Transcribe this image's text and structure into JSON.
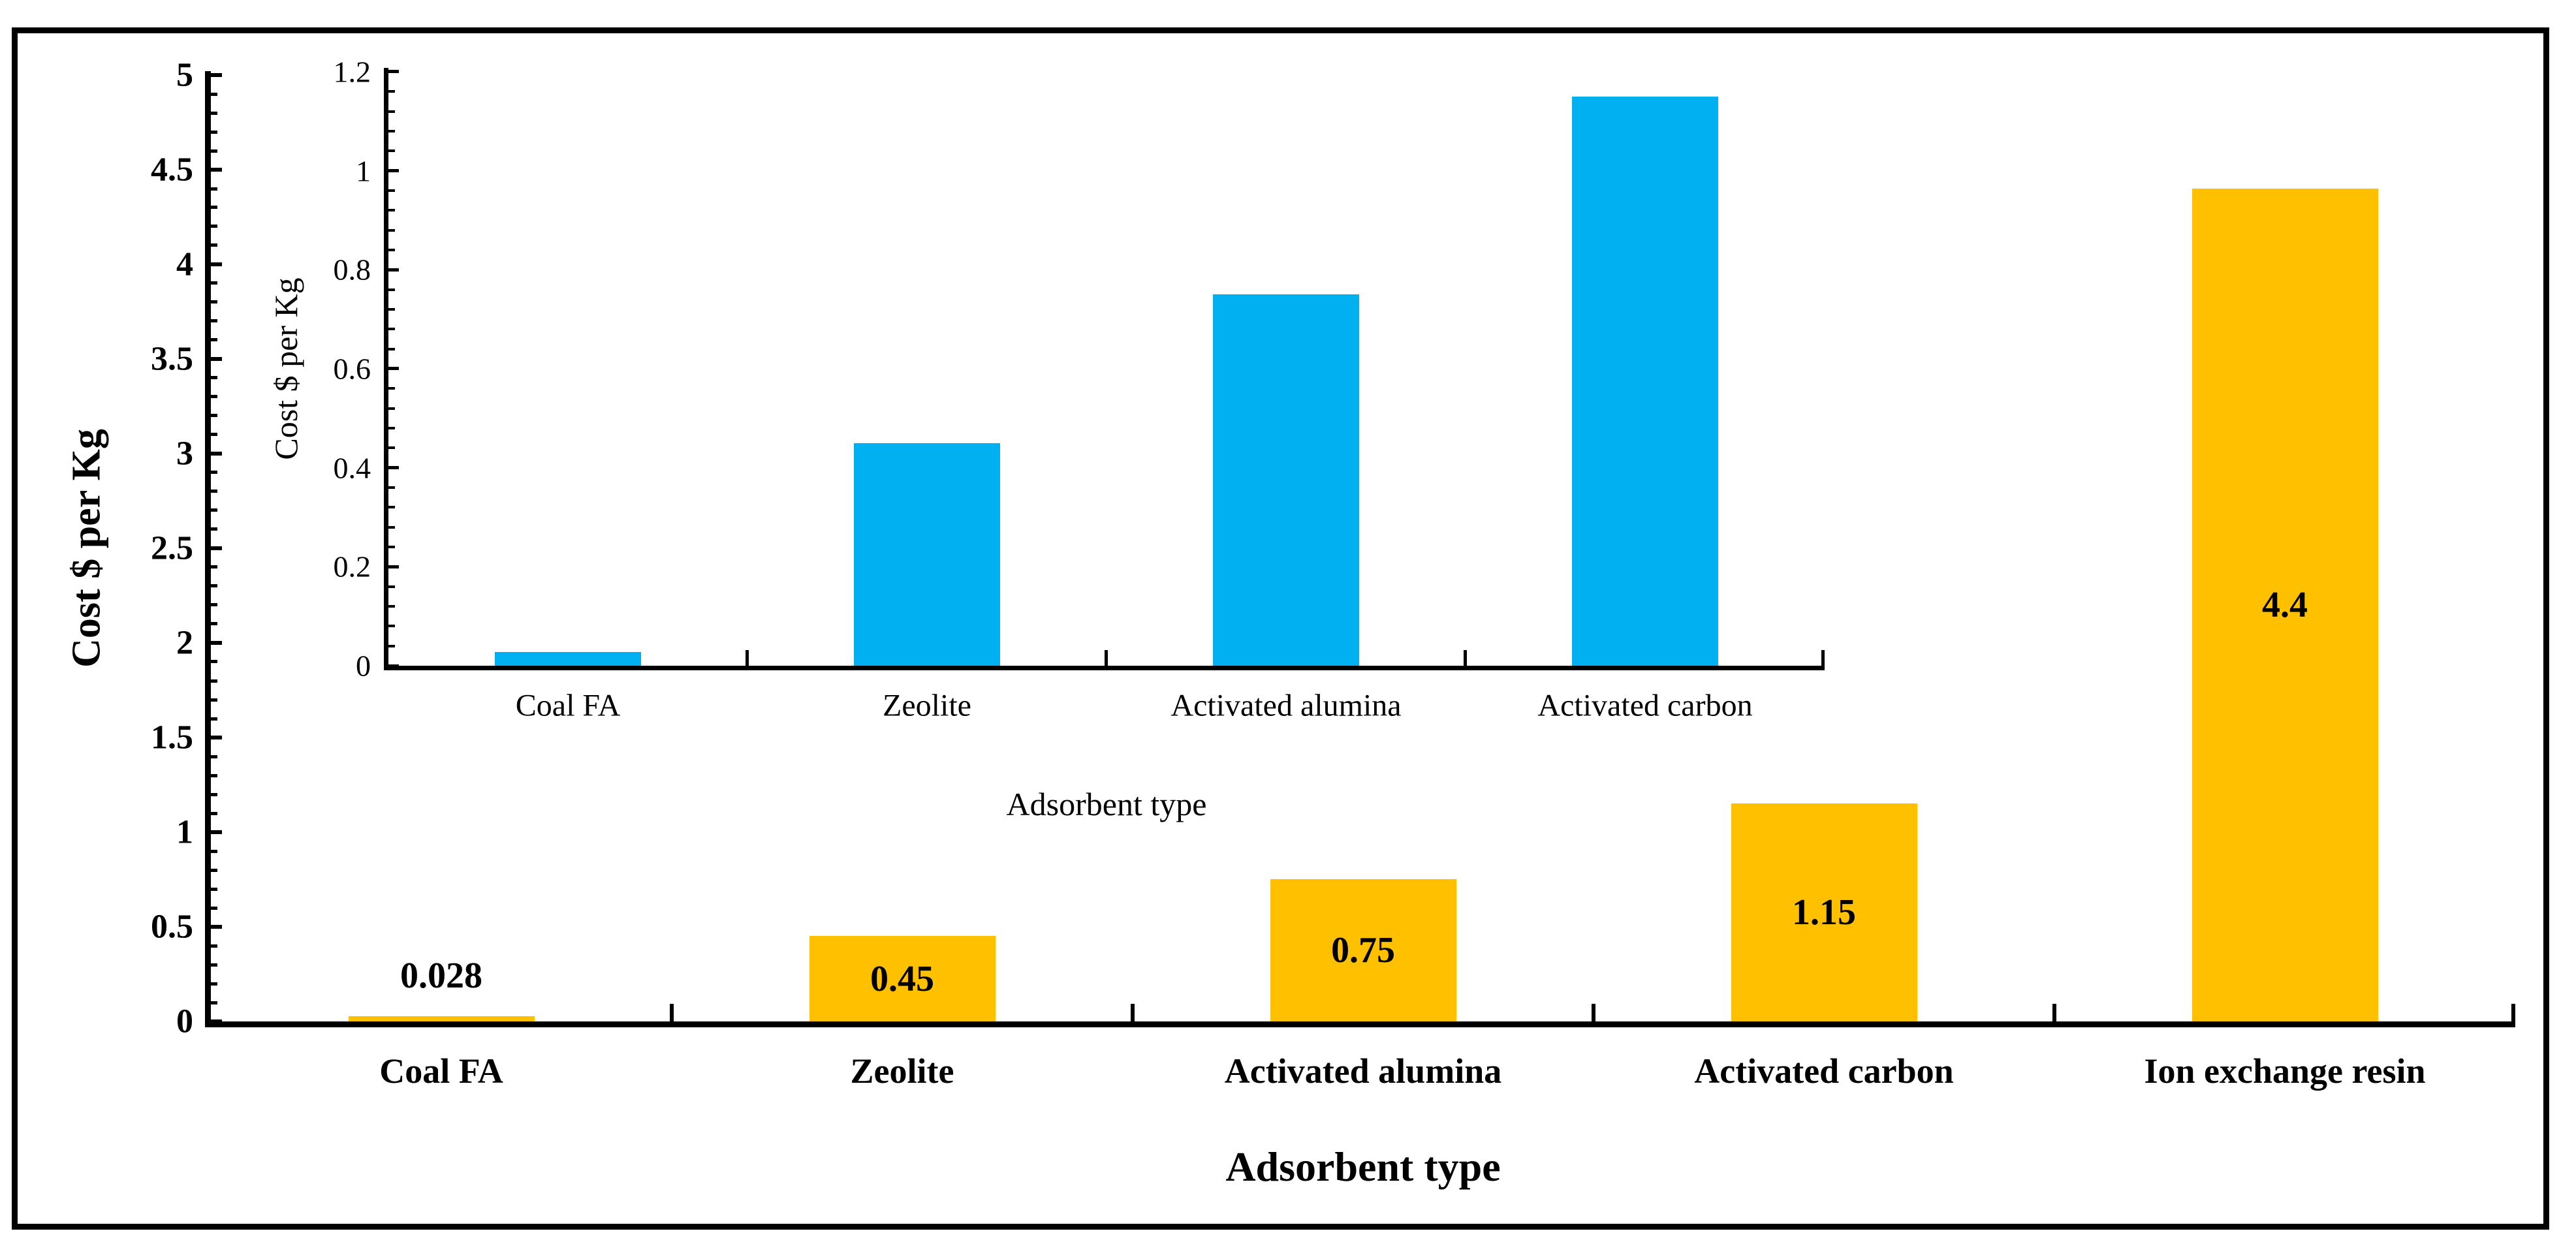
{
  "figure": {
    "background": "#FFFFFF",
    "border_color": "#000000"
  },
  "chart_data": [
    {
      "id": "main",
      "type": "bar",
      "title": "",
      "xlabel": "Adsorbent type",
      "ylabel": "Cost $ per Kg",
      "categories": [
        "Coal FA",
        "Zeolite",
        "Activated alumina",
        "Activated carbon",
        "Ion exchange resin"
      ],
      "values": [
        0.028,
        0.45,
        0.75,
        1.15,
        4.4
      ],
      "value_labels": [
        "0.028",
        "0.45",
        "0.75",
        "1.15",
        "4.4"
      ],
      "ylim": [
        0,
        5
      ],
      "ytick_step": 0.5,
      "ytick_minor_step": 0.1,
      "ytick_labels": [
        "0",
        "0.5",
        "1",
        "1.5",
        "2",
        "2.5",
        "3",
        "3.5",
        "4",
        "4.5",
        "5"
      ],
      "bar_color": "#FFC000",
      "grid": false,
      "legend_position": "none"
    },
    {
      "id": "inset",
      "type": "bar",
      "title": "",
      "xlabel": "Adsorbent type",
      "ylabel": "Cost $ per Kg",
      "categories": [
        "Coal FA",
        "Zeolite",
        "Activated alumina",
        "Activated carbon"
      ],
      "values": [
        0.028,
        0.45,
        0.75,
        1.15
      ],
      "value_labels": null,
      "ylim": [
        0,
        1.2
      ],
      "ytick_step": 0.2,
      "ytick_minor_step": 0.04,
      "ytick_labels": [
        "0",
        "0.2",
        "0.4",
        "0.6",
        "0.8",
        "1",
        "1.2"
      ],
      "bar_color": "#00B0F0",
      "grid": false,
      "legend_position": "none"
    }
  ]
}
